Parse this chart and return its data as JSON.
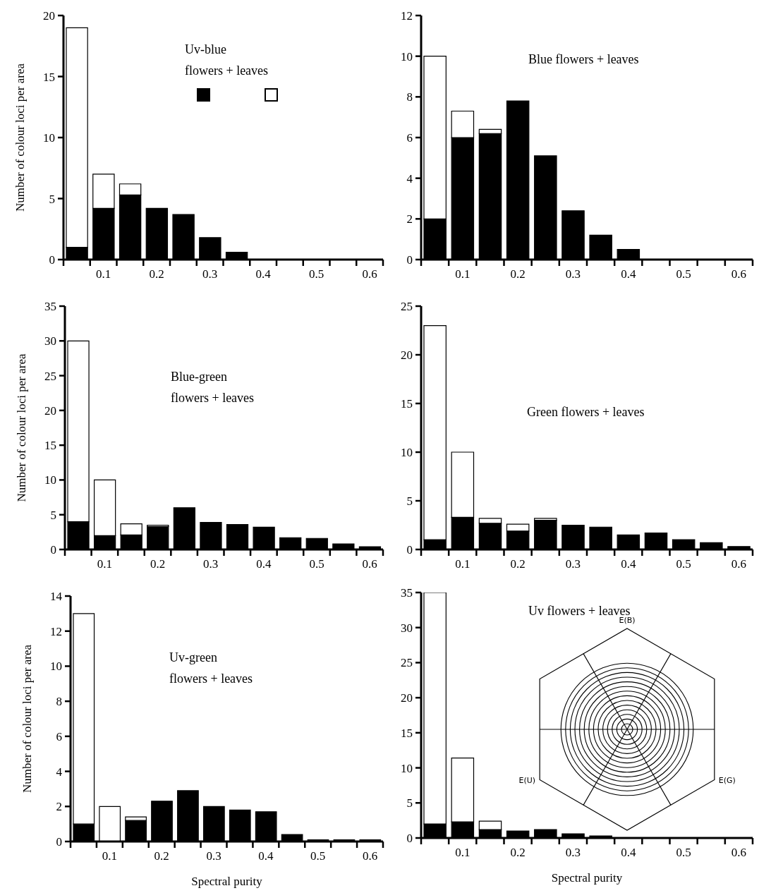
{
  "chart_data": [
    {
      "type": "bar",
      "title": "Uv-blue\nflowers + leaves",
      "ylabel": "Number of colour loci per area",
      "stacked": true,
      "x": [
        0.05,
        0.1,
        0.15,
        0.2,
        0.25,
        0.3,
        0.35,
        0.4,
        0.45,
        0.5,
        0.55,
        0.6
      ],
      "series": [
        {
          "color": "#000000",
          "values": [
            1,
            4.2,
            5.3,
            4.2,
            3.7,
            1.8,
            0.6,
            0,
            0,
            0,
            0,
            0
          ]
        },
        {
          "color": "#ffffff",
          "values": [
            18,
            2.8,
            0.9,
            0,
            0,
            0,
            0,
            0,
            0,
            0,
            0,
            0
          ]
        }
      ],
      "xlim": [
        0.025,
        0.625
      ],
      "xticks": [
        {
          "value": 0.025,
          "label": null
        },
        {
          "value": 0.075,
          "label": null
        },
        0.1,
        {
          "value": 0.125,
          "label": null
        },
        {
          "value": 0.175,
          "label": null
        },
        0.2,
        {
          "value": 0.225,
          "label": null
        },
        {
          "value": 0.275,
          "label": null
        },
        0.3,
        {
          "value": 0.325,
          "label": null
        },
        {
          "value": 0.375,
          "label": null
        },
        0.4,
        {
          "value": 0.425,
          "label": null
        },
        {
          "value": 0.475,
          "label": null
        },
        0.5,
        {
          "value": 0.525,
          "label": null
        },
        {
          "value": 0.575,
          "label": null
        },
        0.6,
        {
          "value": 0.625,
          "label": null
        }
      ],
      "ylim": [
        0,
        20
      ],
      "yticks": [
        0,
        5,
        10,
        15,
        20
      ]
    },
    {
      "type": "bar",
      "title": "Blue flowers + leaves",
      "stacked": true,
      "x": [
        0.05,
        0.1,
        0.15,
        0.2,
        0.25,
        0.3,
        0.35,
        0.4,
        0.45,
        0.5,
        0.55,
        0.6
      ],
      "series": [
        {
          "color": "#000000",
          "values": [
            2,
            6,
            6.2,
            7.8,
            5.1,
            2.4,
            1.2,
            0.5,
            0,
            0,
            0,
            0
          ]
        },
        {
          "color": "#ffffff",
          "values": [
            8,
            1.3,
            0.2,
            0,
            0,
            0,
            0,
            0,
            0,
            0,
            0,
            0
          ]
        }
      ],
      "xlim": [
        0.025,
        0.625
      ],
      "xticks": [
        {
          "value": 0.025,
          "label": null
        },
        {
          "value": 0.075,
          "label": null
        },
        0.1,
        {
          "value": 0.125,
          "label": null
        },
        {
          "value": 0.175,
          "label": null
        },
        0.2,
        {
          "value": 0.225,
          "label": null
        },
        {
          "value": 0.275,
          "label": null
        },
        0.3,
        {
          "value": 0.325,
          "label": null
        },
        {
          "value": 0.375,
          "label": null
        },
        0.4,
        {
          "value": 0.425,
          "label": null
        },
        {
          "value": 0.475,
          "label": null
        },
        0.5,
        {
          "value": 0.525,
          "label": null
        },
        {
          "value": 0.575,
          "label": null
        },
        0.6,
        {
          "value": 0.625,
          "label": null
        }
      ],
      "ylim": [
        0,
        12
      ],
      "yticks": [
        0,
        2,
        4,
        6,
        8,
        10,
        12
      ]
    },
    {
      "type": "bar",
      "title": "Blue-green\nflowers + leaves",
      "ylabel": "Number of colour loci per area",
      "stacked": true,
      "x": [
        0.05,
        0.1,
        0.15,
        0.2,
        0.25,
        0.3,
        0.35,
        0.4,
        0.45,
        0.5,
        0.55,
        0.6
      ],
      "series": [
        {
          "color": "#000000",
          "values": [
            4,
            2,
            2.1,
            3.3,
            6,
            3.9,
            3.6,
            3.2,
            1.7,
            1.6,
            0.8,
            0.4
          ]
        },
        {
          "color": "#ffffff",
          "values": [
            26,
            8,
            1.6,
            0.2,
            0,
            0,
            0,
            0,
            0,
            0,
            0,
            0
          ]
        }
      ],
      "xlim": [
        0.025,
        0.625
      ],
      "xticks": [
        {
          "value": 0.025,
          "label": null
        },
        {
          "value": 0.075,
          "label": null
        },
        0.1,
        {
          "value": 0.125,
          "label": null
        },
        {
          "value": 0.175,
          "label": null
        },
        0.2,
        {
          "value": 0.225,
          "label": null
        },
        {
          "value": 0.275,
          "label": null
        },
        0.3,
        {
          "value": 0.325,
          "label": null
        },
        {
          "value": 0.375,
          "label": null
        },
        0.4,
        {
          "value": 0.425,
          "label": null
        },
        {
          "value": 0.475,
          "label": null
        },
        0.5,
        {
          "value": 0.525,
          "label": null
        },
        {
          "value": 0.575,
          "label": null
        },
        0.6,
        {
          "value": 0.625,
          "label": null
        }
      ],
      "ylim": [
        0,
        35
      ],
      "yticks": [
        0,
        5,
        10,
        15,
        20,
        25,
        30,
        35
      ]
    },
    {
      "type": "bar",
      "title": "Green flowers + leaves",
      "stacked": true,
      "x": [
        0.05,
        0.1,
        0.15,
        0.2,
        0.25,
        0.3,
        0.35,
        0.4,
        0.45,
        0.5,
        0.55,
        0.6
      ],
      "series": [
        {
          "color": "#000000",
          "values": [
            1,
            3.3,
            2.7,
            1.9,
            3,
            2.5,
            2.3,
            1.5,
            1.7,
            1,
            0.7,
            0.3
          ]
        },
        {
          "color": "#ffffff",
          "values": [
            22,
            6.7,
            0.5,
            0.7,
            0.2,
            0,
            0,
            0,
            0,
            0,
            0,
            0
          ]
        }
      ],
      "xlim": [
        0.025,
        0.625
      ],
      "xticks": [
        {
          "value": 0.025,
          "label": null
        },
        {
          "value": 0.075,
          "label": null
        },
        0.1,
        {
          "value": 0.125,
          "label": null
        },
        {
          "value": 0.175,
          "label": null
        },
        0.2,
        {
          "value": 0.225,
          "label": null
        },
        {
          "value": 0.275,
          "label": null
        },
        0.3,
        {
          "value": 0.325,
          "label": null
        },
        {
          "value": 0.375,
          "label": null
        },
        0.4,
        {
          "value": 0.425,
          "label": null
        },
        {
          "value": 0.475,
          "label": null
        },
        0.5,
        {
          "value": 0.525,
          "label": null
        },
        {
          "value": 0.575,
          "label": null
        },
        0.6,
        {
          "value": 0.625,
          "label": null
        }
      ],
      "ylim": [
        0,
        25
      ],
      "yticks": [
        0,
        5,
        10,
        15,
        20,
        25
      ]
    },
    {
      "type": "bar",
      "title": "Uv-green\nflowers + leaves",
      "ylabel": "Number of colour loci per area",
      "xlabel": "Spectral purity",
      "stacked": true,
      "x": [
        0.05,
        0.1,
        0.15,
        0.2,
        0.25,
        0.3,
        0.35,
        0.4,
        0.45,
        0.5,
        0.55,
        0.6
      ],
      "series": [
        {
          "color": "#000000",
          "values": [
            1,
            0,
            1.2,
            2.3,
            2.9,
            2,
            1.8,
            1.7,
            0.4,
            0.1,
            0.1,
            0.1
          ]
        },
        {
          "color": "#ffffff",
          "values": [
            12,
            2,
            0.2,
            0,
            0,
            0,
            0,
            0,
            0,
            0,
            0,
            0
          ]
        }
      ],
      "xlim": [
        0.025,
        0.625
      ],
      "xticks": [
        {
          "value": 0.025,
          "label": null
        },
        {
          "value": 0.075,
          "label": null
        },
        0.1,
        {
          "value": 0.125,
          "label": null
        },
        {
          "value": 0.175,
          "label": null
        },
        0.2,
        {
          "value": 0.225,
          "label": null
        },
        {
          "value": 0.275,
          "label": null
        },
        0.3,
        {
          "value": 0.325,
          "label": null
        },
        {
          "value": 0.375,
          "label": null
        },
        0.4,
        {
          "value": 0.425,
          "label": null
        },
        {
          "value": 0.475,
          "label": null
        },
        0.5,
        {
          "value": 0.525,
          "label": null
        },
        {
          "value": 0.575,
          "label": null
        },
        0.6,
        {
          "value": 0.625,
          "label": null
        }
      ],
      "ylim": [
        0,
        14
      ],
      "yticks": [
        0,
        2,
        4,
        6,
        8,
        10,
        12,
        14
      ]
    },
    {
      "type": "bar",
      "title": "Uv flowers + leaves",
      "xlabel": "Spectral purity",
      "stacked": true,
      "annotations": [
        "E(B)",
        "E(U)",
        "E(G)"
      ],
      "x": [
        0.05,
        0.1,
        0.15,
        0.2,
        0.25,
        0.3,
        0.35,
        0.4,
        0.45,
        0.5,
        0.55,
        0.6
      ],
      "series": [
        {
          "color": "#000000",
          "values": [
            2,
            2.3,
            1.2,
            1,
            1.2,
            0.6,
            0.3,
            0,
            0,
            0,
            0,
            0
          ]
        },
        {
          "color": "#ffffff",
          "values": [
            33,
            9.1,
            1.2,
            0,
            0,
            0,
            0,
            0,
            0,
            0,
            0,
            0
          ]
        }
      ],
      "xlim": [
        0.025,
        0.625
      ],
      "xticks": [
        {
          "value": 0.025,
          "label": null
        },
        {
          "value": 0.075,
          "label": null
        },
        0.1,
        {
          "value": 0.125,
          "label": null
        },
        {
          "value": 0.175,
          "label": null
        },
        0.2,
        {
          "value": 0.225,
          "label": null
        },
        {
          "value": 0.275,
          "label": null
        },
        0.3,
        {
          "value": 0.325,
          "label": null
        },
        {
          "value": 0.375,
          "label": null
        },
        0.4,
        {
          "value": 0.425,
          "label": null
        },
        {
          "value": 0.475,
          "label": null
        },
        0.5,
        {
          "value": 0.525,
          "label": null
        },
        {
          "value": 0.575,
          "label": null
        },
        0.6,
        {
          "value": 0.625,
          "label": null
        }
      ],
      "ylim": [
        0,
        35
      ],
      "yticks": [
        0,
        5,
        10,
        15,
        20,
        25,
        30,
        35
      ]
    }
  ]
}
